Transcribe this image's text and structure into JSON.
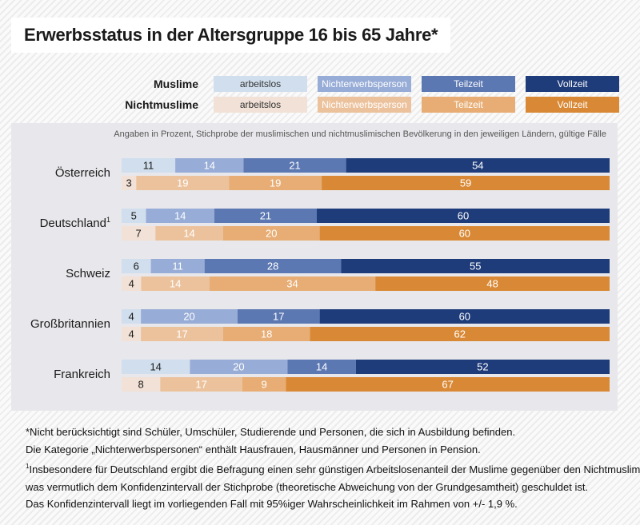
{
  "title": "Erwerbsstatus in der Altersgruppe 16 bis 65 Jahre*",
  "legend": {
    "groups": [
      {
        "name": "Muslime",
        "colors": [
          "#d0deed",
          "#97acd6",
          "#5c78b3",
          "#1f3c7a"
        ],
        "text_colors": [
          "#333333",
          "#ffffff",
          "#ffffff",
          "#ffffff"
        ]
      },
      {
        "name": "Nichtmuslime",
        "colors": [
          "#f1e1d6",
          "#ecc29d",
          "#e7ad74",
          "#d98935"
        ],
        "text_colors": [
          "#333333",
          "#ffffff",
          "#ffffff",
          "#ffffff"
        ]
      }
    ],
    "categories": [
      "arbeitslos",
      "Nichterwerbsperson",
      "Teilzeit",
      "Vollzeit"
    ]
  },
  "note": "Angaben in Prozent, Stichprobe der muslimischen und nichtmuslimischen Bevölkerung in den jeweiligen Ländern, gültige Fälle",
  "chart_data": {
    "type": "bar",
    "orientation": "horizontal",
    "stacked": true,
    "title": "Erwerbsstatus in der Altersgruppe 16 bis 65 Jahre*",
    "unit": "Prozent",
    "xlim": [
      0,
      100
    ],
    "stack_categories": [
      "arbeitslos",
      "Nichterwerbsperson",
      "Teilzeit",
      "Vollzeit"
    ],
    "countries": [
      {
        "name": "Österreich",
        "footnote": "",
        "muslime": [
          11,
          14,
          21,
          54
        ],
        "nichtmuslime": [
          3,
          19,
          19,
          59
        ]
      },
      {
        "name": "Deutschland",
        "footnote": "1",
        "muslime": [
          5,
          14,
          21,
          60
        ],
        "nichtmuslime": [
          7,
          14,
          20,
          60
        ]
      },
      {
        "name": "Schweiz",
        "footnote": "",
        "muslime": [
          6,
          11,
          28,
          55
        ],
        "nichtmuslime": [
          4,
          14,
          34,
          48
        ]
      },
      {
        "name": "Großbritannien",
        "footnote": "",
        "muslime": [
          4,
          20,
          17,
          60
        ],
        "nichtmuslime": [
          4,
          17,
          18,
          62
        ]
      },
      {
        "name": "Frankreich",
        "footnote": "",
        "muslime": [
          14,
          20,
          14,
          52
        ],
        "nichtmuslime": [
          8,
          17,
          9,
          67
        ]
      }
    ]
  },
  "footnotes": {
    "line1": "*Nicht berücksichtigt sind Schüler, Umschüler, Studierende und Personen, die sich in Ausbildung befinden.",
    "line2": "Die Kategorie „Nichterwerbspersonen“ enthält Hausfrauen, Hausmänner und Personen in Pension.",
    "line3_mark": "1",
    "line3": "Insbesondere für Deutschland ergibt die Befragung einen sehr günstigen Arbeitslosenanteil der Muslime gegenüber den Nichtmuslimen,",
    "line4": "was vermutlich dem Konfidenzintervall der Stichprobe (theoretische Abweichung von der Grundgesamtheit) geschuldet ist.",
    "line5": "Das Konfidenzintervall liegt im vorliegenden Fall mit 95%iger Wahrscheinlichkeit im Rahmen von +/- 1,9 %."
  }
}
